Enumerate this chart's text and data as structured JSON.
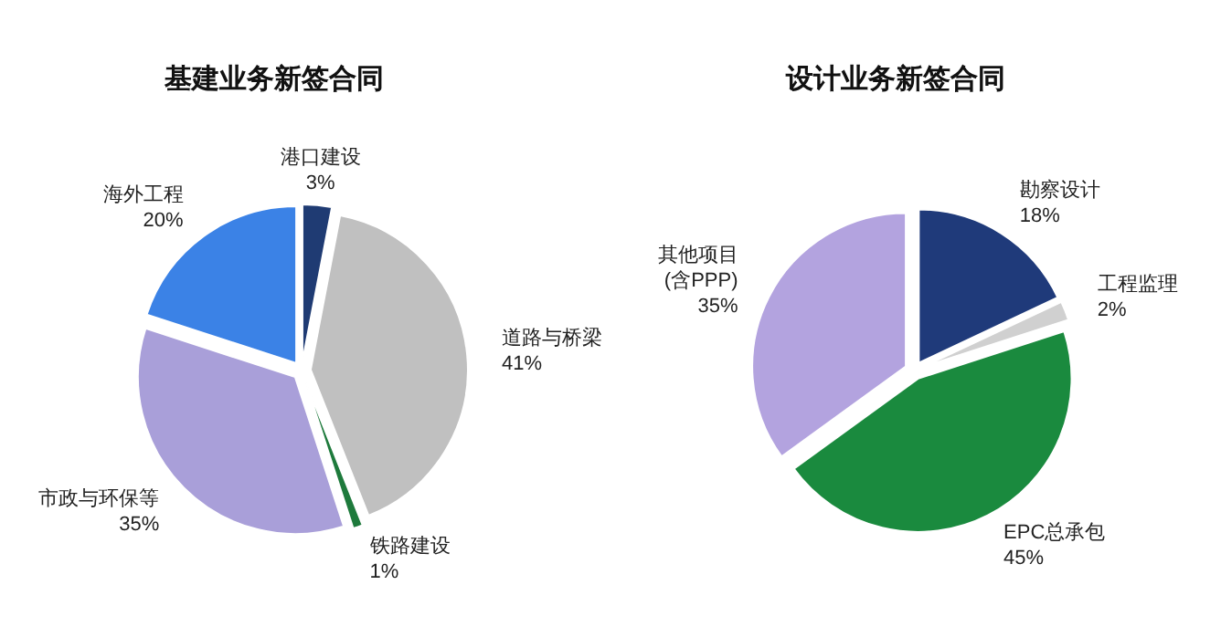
{
  "chart_data": [
    {
      "type": "pie",
      "title": "基建业务新签合同",
      "categories": [
        "港口建设",
        "道路与桥梁",
        "铁路建设",
        "市政与环保等",
        "海外工程"
      ],
      "values": [
        3,
        41,
        1,
        35,
        20
      ],
      "value_labels": [
        "3%",
        "41%",
        "1%",
        "35%",
        "20%"
      ],
      "colors": [
        "#1f3b73",
        "#c0c0c0",
        "#1e7a3c",
        "#a99fd9",
        "#3b82e6"
      ]
    },
    {
      "type": "pie",
      "title": "设计业务新签合同",
      "categories": [
        "勘察设计",
        "工程监理",
        "EPC总承包",
        "其他项目\n(含PPP)"
      ],
      "values": [
        18,
        2,
        45,
        35
      ],
      "value_labels": [
        "18%",
        "2%",
        "45%",
        "35%"
      ],
      "colors": [
        "#1f3a7a",
        "#d0d0d0",
        "#1a8a3e",
        "#b3a3df"
      ]
    }
  ]
}
